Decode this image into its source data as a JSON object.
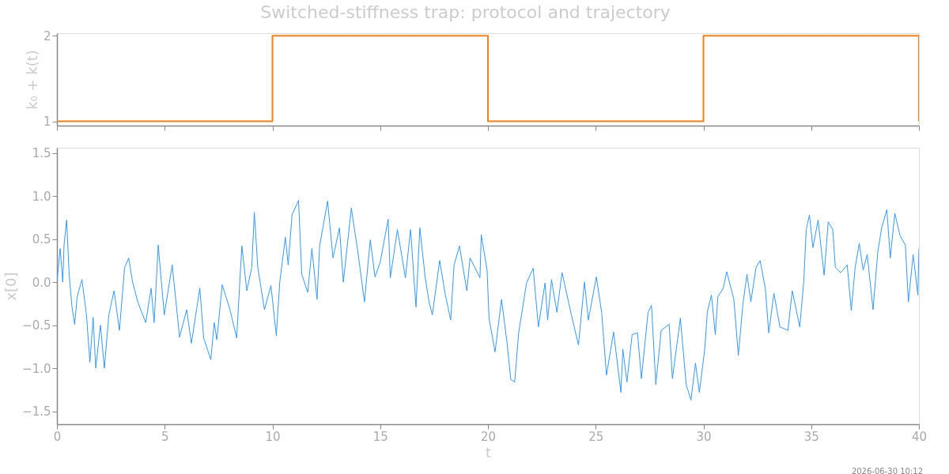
{
  "chart_data": [
    {
      "type": "step",
      "title": "Switched-stiffness trap: protocol and trajectory",
      "ylabel": "k₀ + k(t)",
      "x": [
        0,
        10,
        20,
        30,
        40
      ],
      "series": [
        {
          "color": "#ff7f0e",
          "values": [
            1,
            2,
            1,
            2,
            1
          ]
        }
      ],
      "xlim": [
        0,
        40
      ],
      "xticks": [
        0,
        5,
        10,
        15,
        20,
        25,
        30,
        35,
        40
      ],
      "ylim": [
        0.95,
        2.03
      ],
      "yticks": [
        1,
        2
      ],
      "tick_labels": "y",
      "grid": false
    },
    {
      "type": "line",
      "xlabel": "t",
      "ylabel": "x[0]",
      "annotations": [
        "2026-06-30 10:12"
      ],
      "x": [
        0,
        0.15,
        0.27,
        0.33,
        0.45,
        0.57,
        0.7,
        0.82,
        0.94,
        1.16,
        1.37,
        1.53,
        1.68,
        1.8,
        2.02,
        2.2,
        2.41,
        2.65,
        2.9,
        3.14,
        3.33,
        3.51,
        3.75,
        4.12,
        4.37,
        4.51,
        4.7,
        4.98,
        5.35,
        5.69,
        6.02,
        6.24,
        6.63,
        6.81,
        7.14,
        7.3,
        7.42,
        7.67,
        8.03,
        8.34,
        8.58,
        8.81,
        9.04,
        9.16,
        9.32,
        9.63,
        9.93,
        10.18,
        10.34,
        10.6,
        10.73,
        10.91,
        11.21,
        11.36,
        11.64,
        11.83,
        12.07,
        12.19,
        12.56,
        12.81,
        13.11,
        13.29,
        13.66,
        13.97,
        14.27,
        14.54,
        14.76,
        15.0,
        15.37,
        15.47,
        15.8,
        16.17,
        16.41,
        16.66,
        16.84,
        17.09,
        17.27,
        17.42,
        17.76,
        18.01,
        18.27,
        18.43,
        18.68,
        19.02,
        19.17,
        19.63,
        19.69,
        19.96,
        20.05,
        20.33,
        20.63,
        20.88,
        21.06,
        21.24,
        21.43,
        21.61,
        21.79,
        22.1,
        22.34,
        22.65,
        22.77,
        22.95,
        23.2,
        23.44,
        23.87,
        24.2,
        24.48,
        24.66,
        25.03,
        25.28,
        25.5,
        25.83,
        26.17,
        26.26,
        26.45,
        26.69,
        26.94,
        27.12,
        27.43,
        27.59,
        27.79,
        28.04,
        28.41,
        28.56,
        28.93,
        29.2,
        29.42,
        29.63,
        29.81,
        30.06,
        30.18,
        30.37,
        30.55,
        30.67,
        30.92,
        31.08,
        31.41,
        31.62,
        31.83,
        32.02,
        32.2,
        32.44,
        32.63,
        32.87,
        33.03,
        33.27,
        33.55,
        33.92,
        34.12,
        34.47,
        34.65,
        34.77,
        34.92,
        35.08,
        35.32,
        35.6,
        35.79,
        36.0,
        36.12,
        36.37,
        36.67,
        36.86,
        37.04,
        37.23,
        37.41,
        37.6,
        37.87,
        38.09,
        38.27,
        38.51,
        38.67,
        38.88,
        39.12,
        39.37,
        39.51,
        39.73,
        39.95,
        40.0
      ],
      "series": [
        {
          "color": "#3399ff",
          "values": [
            0.0,
            0.39,
            0.0,
            0.43,
            0.72,
            0.08,
            -0.29,
            -0.49,
            -0.17,
            0.03,
            -0.38,
            -0.93,
            -0.41,
            -1.0,
            -0.5,
            -1.0,
            -0.38,
            -0.1,
            -0.56,
            0.17,
            0.28,
            0.0,
            -0.23,
            -0.47,
            -0.07,
            -0.47,
            0.43,
            -0.38,
            0.2,
            -0.64,
            -0.32,
            -0.71,
            -0.07,
            -0.65,
            -0.9,
            -0.47,
            -0.67,
            -0.03,
            -0.32,
            -0.65,
            0.42,
            -0.1,
            0.17,
            0.81,
            0.17,
            -0.32,
            -0.04,
            -0.62,
            0.0,
            0.52,
            0.2,
            0.78,
            0.95,
            0.09,
            -0.12,
            0.39,
            -0.2,
            0.42,
            0.94,
            0.28,
            0.63,
            0.0,
            0.86,
            0.34,
            -0.23,
            0.49,
            0.06,
            0.23,
            0.73,
            0.05,
            0.61,
            0.05,
            0.61,
            -0.29,
            0.63,
            0.05,
            -0.23,
            -0.38,
            0.25,
            -0.13,
            -0.44,
            0.2,
            0.42,
            -0.1,
            0.28,
            0.05,
            0.55,
            0.14,
            -0.42,
            -0.81,
            -0.2,
            -0.69,
            -1.13,
            -1.16,
            -0.58,
            -0.3,
            -0.01,
            0.16,
            -0.52,
            -0.01,
            -0.44,
            0.03,
            -0.35,
            0.11,
            -0.38,
            -0.73,
            0.0,
            -0.44,
            0.06,
            -0.36,
            -1.08,
            -0.58,
            -1.28,
            -0.78,
            -1.16,
            -0.61,
            -0.59,
            -1.12,
            -0.35,
            -0.27,
            -1.19,
            -0.56,
            -0.49,
            -1.12,
            -0.42,
            -1.19,
            -1.37,
            -0.94,
            -1.28,
            -0.78,
            -0.35,
            -0.15,
            -0.61,
            -0.17,
            -0.07,
            0.12,
            -0.2,
            -0.85,
            -0.26,
            0.09,
            -0.23,
            0.17,
            0.25,
            -0.07,
            -0.59,
            -0.13,
            -0.52,
            -0.56,
            -0.1,
            -0.52,
            -0.01,
            0.61,
            0.78,
            0.4,
            0.72,
            0.08,
            0.7,
            0.61,
            0.17,
            0.11,
            0.2,
            -0.33,
            0.17,
            0.45,
            0.14,
            0.32,
            -0.32,
            0.35,
            0.63,
            0.84,
            0.28,
            0.8,
            0.54,
            0.43,
            -0.23,
            0.32,
            -0.15,
            0.39
          ]
        }
      ],
      "xlim": [
        0,
        40
      ],
      "xticks": [
        0,
        5,
        10,
        15,
        20,
        25,
        30,
        35,
        40
      ],
      "ylim": [
        -1.65,
        1.56
      ],
      "yticks": [
        -1.5,
        {
          "value": -1,
          "label": "−1.0"
        },
        -0.5,
        {
          "value": 0,
          "label": "0.0"
        },
        0.5,
        {
          "value": 1,
          "label": "1.0"
        },
        1.5
      ],
      "grid": false
    }
  ]
}
